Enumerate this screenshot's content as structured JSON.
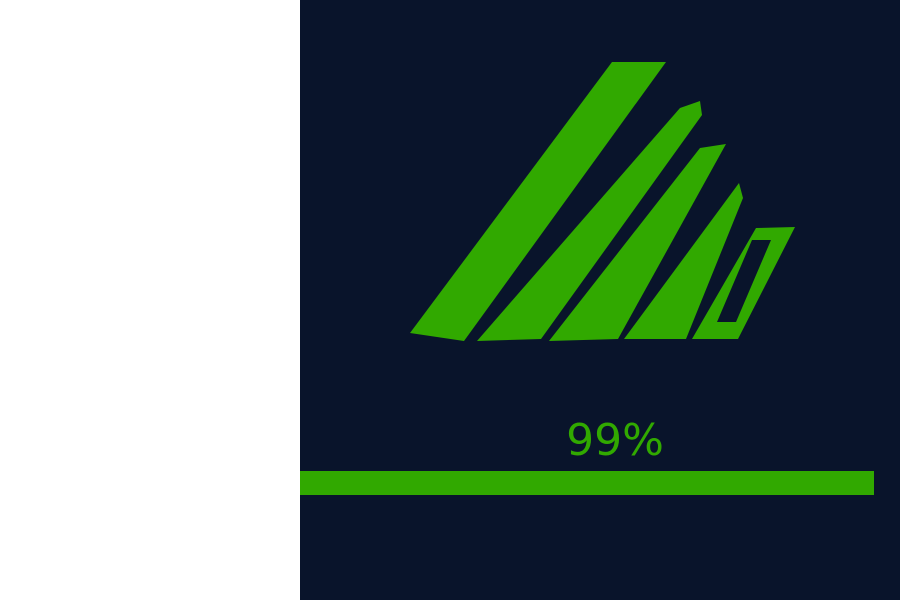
{
  "window": {
    "left_panel_color": "#ffffff",
    "background_color": "#09142b",
    "accent_color": "#31a900"
  },
  "logo": {
    "name": "lho-logo-mark"
  },
  "loading": {
    "percent_label": "99%",
    "progress": 0.99
  }
}
